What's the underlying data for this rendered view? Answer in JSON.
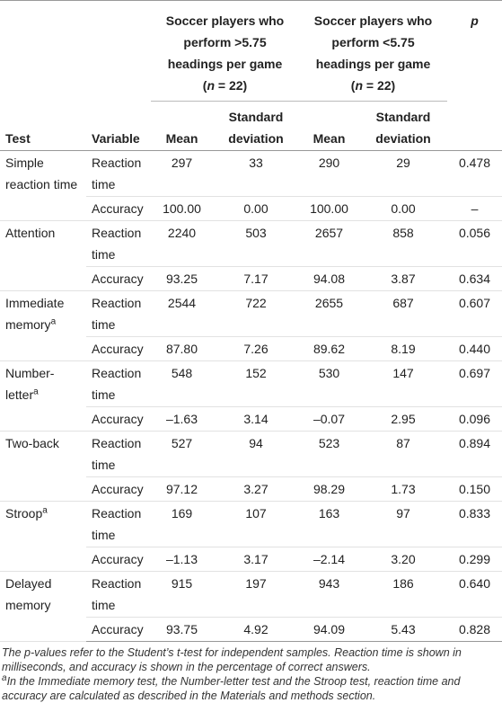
{
  "header": {
    "groups": [
      {
        "title": "Soccer players who perform >5.75 headings per game",
        "sample": {
          "open": "(",
          "symbol": "n",
          "rest": " = 22)"
        }
      },
      {
        "title": "Soccer players who perform <5.75 headings per game",
        "sample": {
          "open": "(",
          "symbol": "n",
          "rest": " = 22)"
        }
      }
    ],
    "p": "p",
    "columns": [
      "Test",
      "Variable",
      "Mean",
      "Standard deviation",
      "Mean",
      "Standard deviation"
    ]
  },
  "tests": [
    {
      "name": "Simple reaction time",
      "rows": [
        {
          "variable": "Reaction time",
          "values": [
            "297",
            "33",
            "290",
            "29",
            "0.478"
          ]
        },
        {
          "variable": "Accuracy",
          "values": [
            "100.00",
            "0.00",
            "100.00",
            "0.00",
            "–"
          ]
        }
      ]
    },
    {
      "name": "Attention",
      "rows": [
        {
          "variable": "Reaction time",
          "values": [
            "2240",
            "503",
            "2657",
            "858",
            "0.056"
          ]
        },
        {
          "variable": "Accuracy",
          "values": [
            "93.25",
            "7.17",
            "94.08",
            "3.87",
            "0.634"
          ]
        }
      ]
    },
    {
      "name": "Immediate memory",
      "mark": "a",
      "rows": [
        {
          "variable": "Reaction time",
          "values": [
            "2544",
            "722",
            "2655",
            "687",
            "0.607"
          ]
        },
        {
          "variable": "Accuracy",
          "values": [
            "87.80",
            "7.26",
            "89.62",
            "8.19",
            "0.440"
          ]
        }
      ]
    },
    {
      "name": "Number-letter",
      "mark": "a",
      "rows": [
        {
          "variable": "Reaction time",
          "values": [
            "548",
            "152",
            "530",
            "147",
            "0.697"
          ]
        },
        {
          "variable": "Accuracy",
          "values": [
            "–1.63",
            "3.14",
            "–0.07",
            "2.95",
            "0.096"
          ]
        }
      ]
    },
    {
      "name": "Two-back",
      "rows": [
        {
          "variable": "Reaction time",
          "values": [
            "527",
            "94",
            "523",
            "87",
            "0.894"
          ]
        },
        {
          "variable": "Accuracy",
          "values": [
            "97.12",
            "3.27",
            "98.29",
            "1.73",
            "0.150"
          ]
        }
      ]
    },
    {
      "name": "Stroop",
      "mark": "a",
      "rows": [
        {
          "variable": "Reaction time",
          "values": [
            "169",
            "107",
            "163",
            "97",
            "0.833"
          ]
        },
        {
          "variable": "Accuracy",
          "values": [
            "–1.13",
            "3.17",
            "–2.14",
            "3.20",
            "0.299"
          ]
        }
      ]
    },
    {
      "name": "Delayed memory",
      "rows": [
        {
          "variable": "Reaction time",
          "values": [
            "915",
            "197",
            "943",
            "186",
            "0.640"
          ]
        },
        {
          "variable": "Accuracy",
          "values": [
            "93.75",
            "4.92",
            "94.09",
            "5.43",
            "0.828"
          ]
        }
      ]
    }
  ],
  "notes": {
    "text": "The p-values refer to the Student’s t-test for independent samples. Reaction time is shown in milliseconds, and accuracy is shown in the percentage of correct answers.",
    "footnote": {
      "mark": "a",
      "text": "In the Immediate memory test, the Number-letter test and the Stroop test, reaction time and accuracy are calculated as described in the Materials and methods section."
    }
  }
}
